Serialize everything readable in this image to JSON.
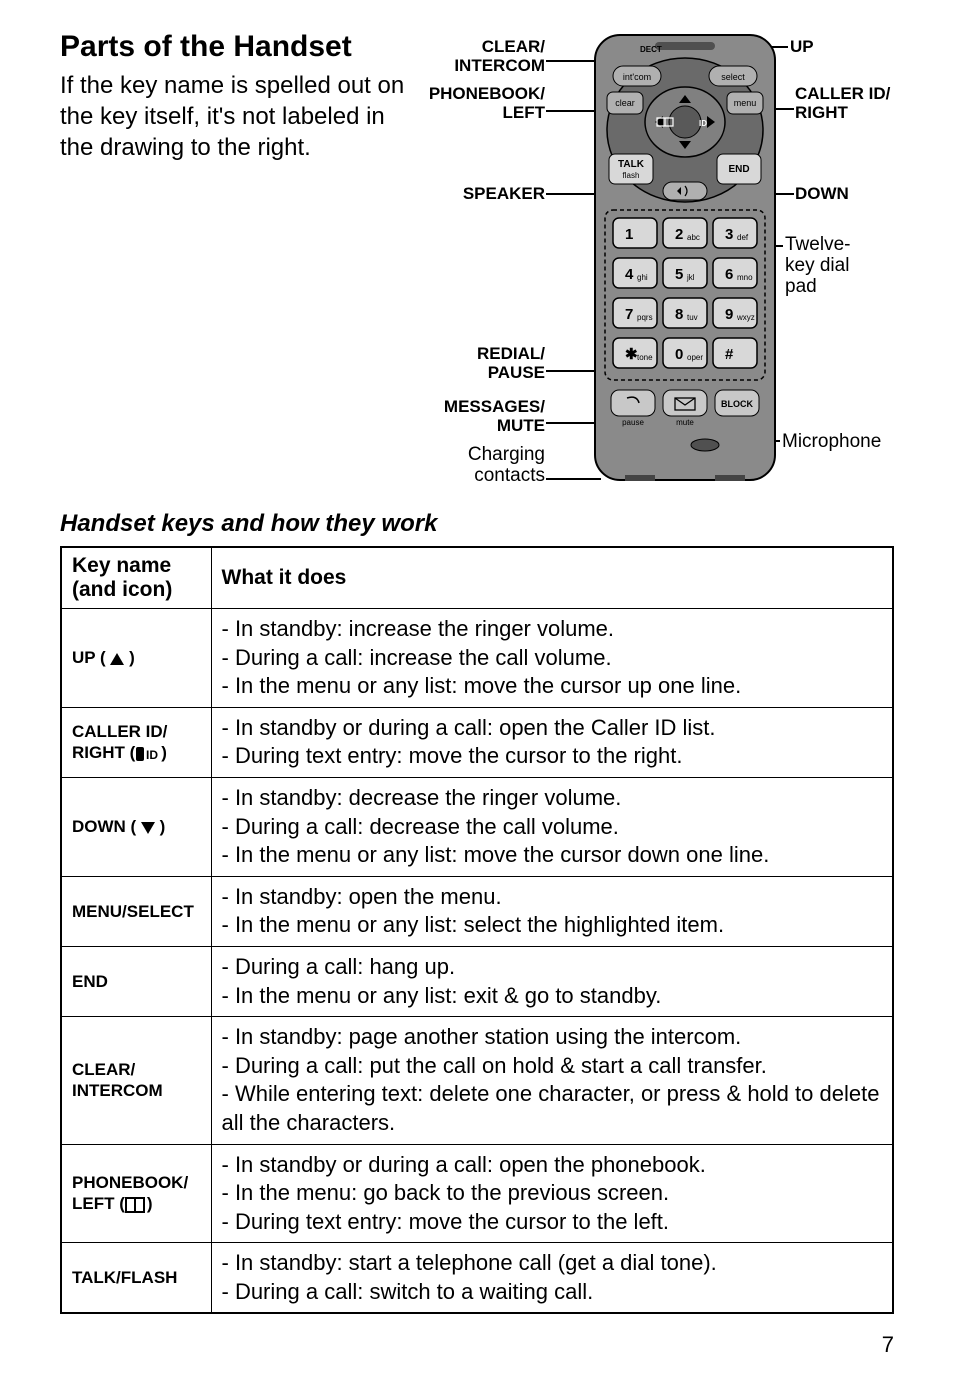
{
  "title": "Parts of the Handset",
  "intro": "If the key name is spelled out on the key itself, it's not labeled in the drawing to the right.",
  "subtitle": "Handset keys and how they work",
  "diagram_labels": {
    "clear_intercom": "CLEAR/\nINTERCOM",
    "phonebook_left": "PHONEBOOK/\nLEFT",
    "speaker": "SPEAKER",
    "redial_pause": "REDIAL/\nPAUSE",
    "messages_mute": "MESSAGES/\nMUTE",
    "charging_contacts": "Charging\ncontacts",
    "up": "UP",
    "callerid_right": "CALLER ID/\nRIGHT",
    "down": "DOWN",
    "keypad": "Twelve-\nkey dial\npad",
    "microphone": "Microphone"
  },
  "phone_text": {
    "dect": "DECT",
    "intcom": "int'com",
    "select": "select",
    "clear": "clear",
    "menu": "menu",
    "talk": "TALK",
    "flash": "flash",
    "end": "END",
    "pause": "pause",
    "mute": "mute",
    "block": "BLOCK",
    "tone": "tone",
    "oper": "oper"
  },
  "keypad_data": {
    "keys": [
      {
        "num": "1",
        "sub": ""
      },
      {
        "num": "2",
        "sub": "abc"
      },
      {
        "num": "3",
        "sub": "def"
      },
      {
        "num": "4",
        "sub": "ghi"
      },
      {
        "num": "5",
        "sub": "jkl"
      },
      {
        "num": "6",
        "sub": "mno"
      },
      {
        "num": "7",
        "sub": "pqrs"
      },
      {
        "num": "8",
        "sub": "tuv"
      },
      {
        "num": "9",
        "sub": "wxyz"
      },
      {
        "num": "✱",
        "sub": "tone"
      },
      {
        "num": "0",
        "sub": "oper"
      },
      {
        "num": "#",
        "sub": ""
      }
    ]
  },
  "table": {
    "headers": [
      "Key name (and icon)",
      "What it does"
    ],
    "rows": [
      {
        "key": "UP",
        "icon": "up",
        "desc": [
          "- In standby: increase the ringer volume.",
          "- During a call: increase the call volume.",
          "- In the menu or any list: move the cursor up one line."
        ]
      },
      {
        "key": "CALLER ID/\nRIGHT",
        "icon": "cid",
        "desc": [
          "- In standby or during a call: open the Caller ID list.",
          "- During text entry: move the cursor to the right."
        ]
      },
      {
        "key": "DOWN",
        "icon": "down",
        "desc": [
          "- In standby: decrease the ringer volume.",
          "- During a call: decrease the call volume.",
          "- In the menu or any list: move the cursor down one line."
        ]
      },
      {
        "key": "MENU/SELECT",
        "icon": "",
        "desc": [
          "- In standby: open the menu.",
          "- In the menu or any list: select the highlighted item."
        ]
      },
      {
        "key": "END",
        "icon": "",
        "desc": [
          "- During a call: hang up.",
          "- In the menu or any list: exit & go to standby."
        ]
      },
      {
        "key": "CLEAR/\nINTERCOM",
        "icon": "",
        "desc": [
          "- In standby: page another station using the intercom.",
          "- During a call: put the call on hold & start a call transfer.",
          "- While entering text: delete one character, or press & hold to delete all the characters."
        ]
      },
      {
        "key": "PHONEBOOK/\nLEFT",
        "icon": "book",
        "desc": [
          "- In standby or during a call: open the phonebook.",
          "- In the menu: go back to the previous screen.",
          "- During text entry: move the cursor to the left."
        ]
      },
      {
        "key": "TALK/FLASH",
        "icon": "",
        "desc": [
          "- In standby: start a telephone call (get a dial tone).",
          "- During a call: switch to a waiting call."
        ]
      }
    ]
  },
  "page_number": "7",
  "colors": {
    "phone_body": "#8a8a8a",
    "phone_dark": "#595959",
    "screen": "#cfcfcf",
    "key_bg": "#e0e0e0",
    "key_border": "#000000"
  }
}
